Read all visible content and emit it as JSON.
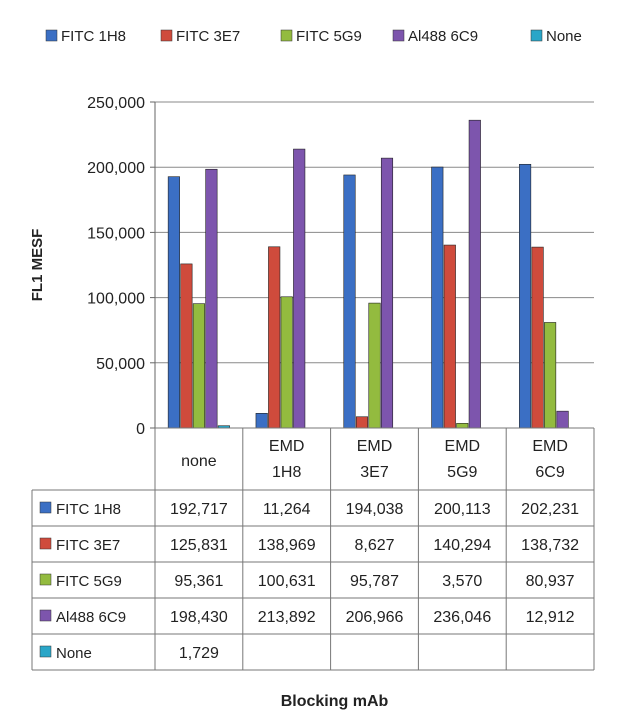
{
  "chart_data": {
    "type": "bar",
    "ylabel": "FL1 MESF",
    "xlabel": "Blocking mAb",
    "ylim": [
      0,
      250000
    ],
    "yticks": [
      "0",
      "50,000",
      "100,000",
      "150,000",
      "200,000",
      "250,000"
    ],
    "ytick_values": [
      0,
      50000,
      100000,
      150000,
      200000,
      250000
    ],
    "grid": "horizontal",
    "legend_position": "top",
    "categories": [
      [
        "none"
      ],
      [
        "EMD",
        "1H8"
      ],
      [
        "EMD",
        "3E7"
      ],
      [
        "EMD",
        "5G9"
      ],
      [
        "EMD",
        "6C9"
      ]
    ],
    "series": [
      {
        "name": "FITC 1H8",
        "color": "#3b6fc4",
        "values": [
          192717,
          11264,
          194038,
          200113,
          202231
        ],
        "labels": [
          "192,717",
          "11,264",
          "194,038",
          "200,113",
          "202,231"
        ]
      },
      {
        "name": "FITC 3E7",
        "color": "#cf4b3c",
        "values": [
          125831,
          138969,
          8627,
          140294,
          138732
        ],
        "labels": [
          "125,831",
          "138,969",
          "8,627",
          "140,294",
          "138,732"
        ]
      },
      {
        "name": "FITC 5G9",
        "color": "#93bb3f",
        "values": [
          95361,
          100631,
          95787,
          3570,
          80937
        ],
        "labels": [
          "95,361",
          "100,631",
          "95,787",
          "3,570",
          "80,937"
        ]
      },
      {
        "name": "Al488 6C9",
        "color": "#7d55ad",
        "values": [
          198430,
          213892,
          206966,
          236046,
          12912
        ],
        "labels": [
          "198,430",
          "213,892",
          "206,966",
          "236,046",
          "12,912"
        ]
      },
      {
        "name": "None",
        "color": "#2aa6c8",
        "values": [
          1729,
          null,
          null,
          null,
          null
        ],
        "labels": [
          "1,729",
          "",
          "",
          "",
          ""
        ]
      }
    ]
  }
}
